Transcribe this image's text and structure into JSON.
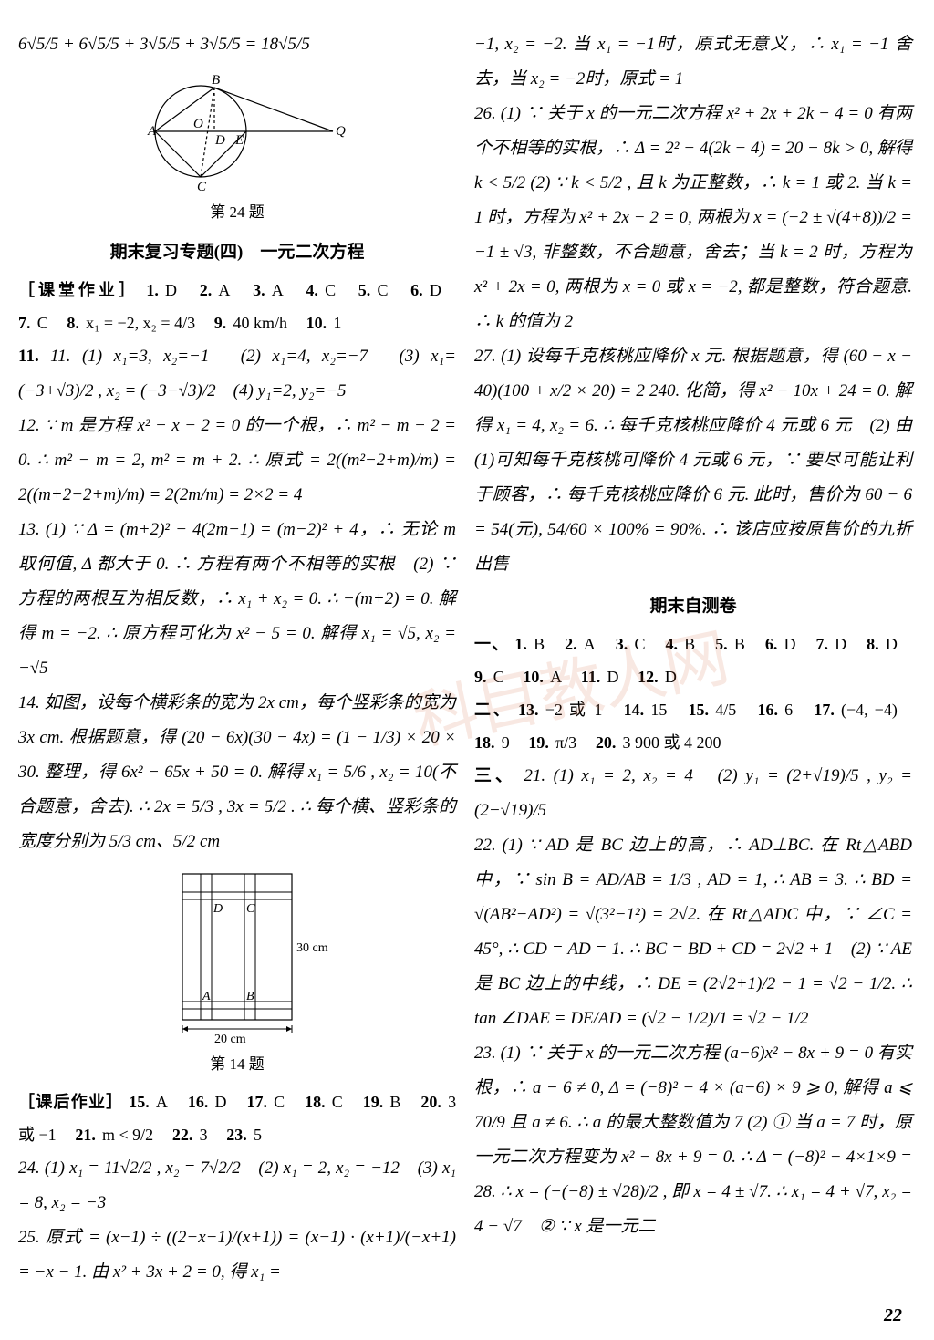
{
  "page_number": "22",
  "page_bg": "#ffffff",
  "text_color": "#000000",
  "watermark_text": "科目教人网",
  "watermark_color": "rgba(210,100,60,0.15)",
  "figures": {
    "circle_fig": {
      "type": "diagram-geometry",
      "caption": "第 24 题",
      "points": [
        "A",
        "B",
        "C",
        "D",
        "E",
        "O",
        "Q"
      ],
      "stroke": "#000000",
      "radius": 50
    },
    "rect_fig": {
      "type": "diagram-geometry",
      "caption": "第 14 题",
      "width_label": "20 cm",
      "height_label": "30 cm",
      "inner_points": [
        "A",
        "B",
        "C",
        "D"
      ],
      "stroke": "#000000"
    }
  },
  "left": {
    "top_eq": "6√5/5 + 6√5/5 + 3√5/5 + 3√5/5 = 18√5/5",
    "section_a_title": "期末复习专题(四)　一元二次方程",
    "section_a_subtitle": "［课堂作业］",
    "q1_12": [
      {
        "n": "1.",
        "a": "D"
      },
      {
        "n": "2.",
        "a": "A"
      },
      {
        "n": "3.",
        "a": "A"
      },
      {
        "n": "4.",
        "a": "C"
      },
      {
        "n": "5.",
        "a": "C"
      },
      {
        "n": "6.",
        "a": "D"
      },
      {
        "n": "7.",
        "a": "C"
      },
      {
        "n": "8.",
        "a": "x₁ = −2, x₂ = 4/3"
      },
      {
        "n": "9.",
        "a": "40 km/h"
      },
      {
        "n": "10.",
        "a": "1"
      }
    ],
    "q11": "11. (1) x₁=3, x₂=−1　(2) x₁=4, x₂=−7　(3) x₁= (−3+√3)/2 , x₂ = (−3−√3)/2　(4) y₁=2, y₂=−5",
    "q12": "12. ∵ m 是方程 x² − x − 2 = 0 的一个根，∴ m² − m − 2 = 0. ∴ m² − m = 2, m² = m + 2. ∴ 原式 = 2((m²−2+m)/m) = 2((m+2−2+m)/m) = 2(2m/m) = 2×2 = 4",
    "q13": "13. (1) ∵ Δ = (m+2)² − 4(2m−1) = (m−2)² + 4，∴ 无论 m 取何值, Δ 都大于 0. ∴ 方程有两个不相等的实根　(2) ∵ 方程的两根互为相反数，∴ x₁ + x₂ = 0. ∴ −(m+2) = 0. 解得 m = −2. ∴ 原方程可化为 x² − 5 = 0. 解得 x₁ = √5, x₂ = −√5",
    "q14": "14. 如图，设每个横彩条的宽为 2x cm，每个竖彩条的宽为 3x cm. 根据题意，得 (20 − 6x)(30 − 4x) = (1 − 1/3) × 20 × 30. 整理，得 6x² − 65x + 50 = 0. 解得 x₁ = 5/6 , x₂ = 10(不合题意，舍去). ∴ 2x = 5/3 , 3x = 5/2 . ∴ 每个横、竖彩条的宽度分别为 5/3 cm、5/2 cm",
    "section_b_subtitle": "［课后作业］",
    "q15_23": [
      {
        "n": "15.",
        "a": "A"
      },
      {
        "n": "16.",
        "a": "D"
      },
      {
        "n": "17.",
        "a": "C"
      },
      {
        "n": "18.",
        "a": "C"
      },
      {
        "n": "19.",
        "a": "B"
      },
      {
        "n": "20.",
        "a": "3 或 −1"
      },
      {
        "n": "21.",
        "a": "m < 9/2"
      },
      {
        "n": "22.",
        "a": "3"
      },
      {
        "n": "23.",
        "a": "5"
      }
    ],
    "q24": "24. (1) x₁ = 11√2/2 , x₂ = 7√2/2　(2) x₁ = 2, x₂ = −12　(3) x₁ = 8, x₂ = −3",
    "q25": "25. 原式 = (x−1) ÷ ((2−x−1)/(x+1)) = (x−1) · (x+1)/(−x+1) = −x − 1. 由 x² + 3x + 2 = 0, 得 x₁ ="
  },
  "right": {
    "q25_cont": "−1, x₂ = −2. 当 x₁ = −1时，原式无意义，∴ x₁ = −1 舍去，当 x₂ = −2时，原式 = 1",
    "q26": "26. (1) ∵ 关于 x 的一元二次方程 x² + 2x + 2k − 4 = 0 有两个不相等的实根，∴ Δ = 2² − 4(2k − 4) = 20 − 8k > 0, 解得 k < 5/2 (2) ∵ k < 5/2 , 且 k 为正整数，∴ k = 1 或 2. 当 k = 1 时，方程为 x² + 2x − 2 = 0, 两根为 x = (−2 ± √(4+8))/2 = −1 ± √3, 非整数，不合题意，舍去；当 k = 2 时，方程为 x² + 2x = 0, 两根为 x = 0 或 x = −2, 都是整数，符合题意. ∴ k 的值为 2",
    "q27": "27. (1) 设每千克核桃应降价 x 元. 根据题意，得 (60 − x − 40)(100 + x/2 × 20) = 2 240. 化简，得 x² − 10x + 24 = 0. 解得 x₁ = 4, x₂ = 6. ∴ 每千克核桃应降价 4 元或 6 元　(2) 由(1)可知每千克核桃可降价 4 元或 6 元，∵ 要尽可能让利于顾客，∴ 每千克核桃应降价 6 元. 此时，售价为 60 − 6 = 54(元), 54/60 × 100% = 90%. ∴ 该店应按原售价的九折出售",
    "section_c_title": "期末自测卷",
    "part1_label": "一、",
    "part1": [
      {
        "n": "1.",
        "a": "B"
      },
      {
        "n": "2.",
        "a": "A"
      },
      {
        "n": "3.",
        "a": "C"
      },
      {
        "n": "4.",
        "a": "B"
      },
      {
        "n": "5.",
        "a": "B"
      },
      {
        "n": "6.",
        "a": "D"
      },
      {
        "n": "7.",
        "a": "D"
      },
      {
        "n": "8.",
        "a": "D"
      },
      {
        "n": "9.",
        "a": "C"
      },
      {
        "n": "10.",
        "a": "A"
      },
      {
        "n": "11.",
        "a": "D"
      },
      {
        "n": "12.",
        "a": "D"
      }
    ],
    "part2_label": "二、",
    "part2": [
      {
        "n": "13.",
        "a": "−2 或 1"
      },
      {
        "n": "14.",
        "a": "15"
      },
      {
        "n": "15.",
        "a": "4/5"
      },
      {
        "n": "16.",
        "a": "6"
      },
      {
        "n": "17.",
        "a": "(−4, −4)"
      },
      {
        "n": "18.",
        "a": "9"
      },
      {
        "n": "19.",
        "a": "π/3"
      },
      {
        "n": "20.",
        "a": "3 900 或 4 200"
      }
    ],
    "part3_label": "三、",
    "q21": "21. (1) x₁ = 2, x₂ = 4　(2) y₁ = (2+√19)/5 , y₂ = (2−√19)/5",
    "q22": "22. (1) ∵ AD 是 BC 边上的高，∴ AD⊥BC. 在 Rt△ABD 中，∵ sin B = AD/AB = 1/3 , AD = 1, ∴ AB = 3. ∴ BD = √(AB²−AD²) = √(3²−1²) = 2√2. 在 Rt△ADC 中，∵ ∠C = 45°, ∴ CD = AD = 1. ∴ BC = BD + CD = 2√2 + 1　(2) ∵ AE 是 BC 边上的中线，∴ DE = (2√2+1)/2 − 1 = √2 − 1/2. ∴ tan ∠DAE = DE/AD = (√2 − 1/2)/1 = √2 − 1/2",
    "q23": "23. (1) ∵ 关于 x 的一元二次方程 (a−6)x² − 8x + 9 = 0 有实根，∴ a − 6 ≠ 0, Δ = (−8)² − 4 × (a−6) × 9 ⩾ 0, 解得 a ⩽ 70/9 且 a ≠ 6. ∴ a 的最大整数值为 7 (2) ① 当 a = 7 时，原一元二次方程变为 x² − 8x + 9 = 0. ∴ Δ = (−8)² − 4×1×9 = 28. ∴ x = (−(−8) ± √28)/2 , 即 x = 4 ± √7. ∴ x₁ = 4 + √7, x₂ = 4 − √7　② ∵ x 是一元二"
  }
}
